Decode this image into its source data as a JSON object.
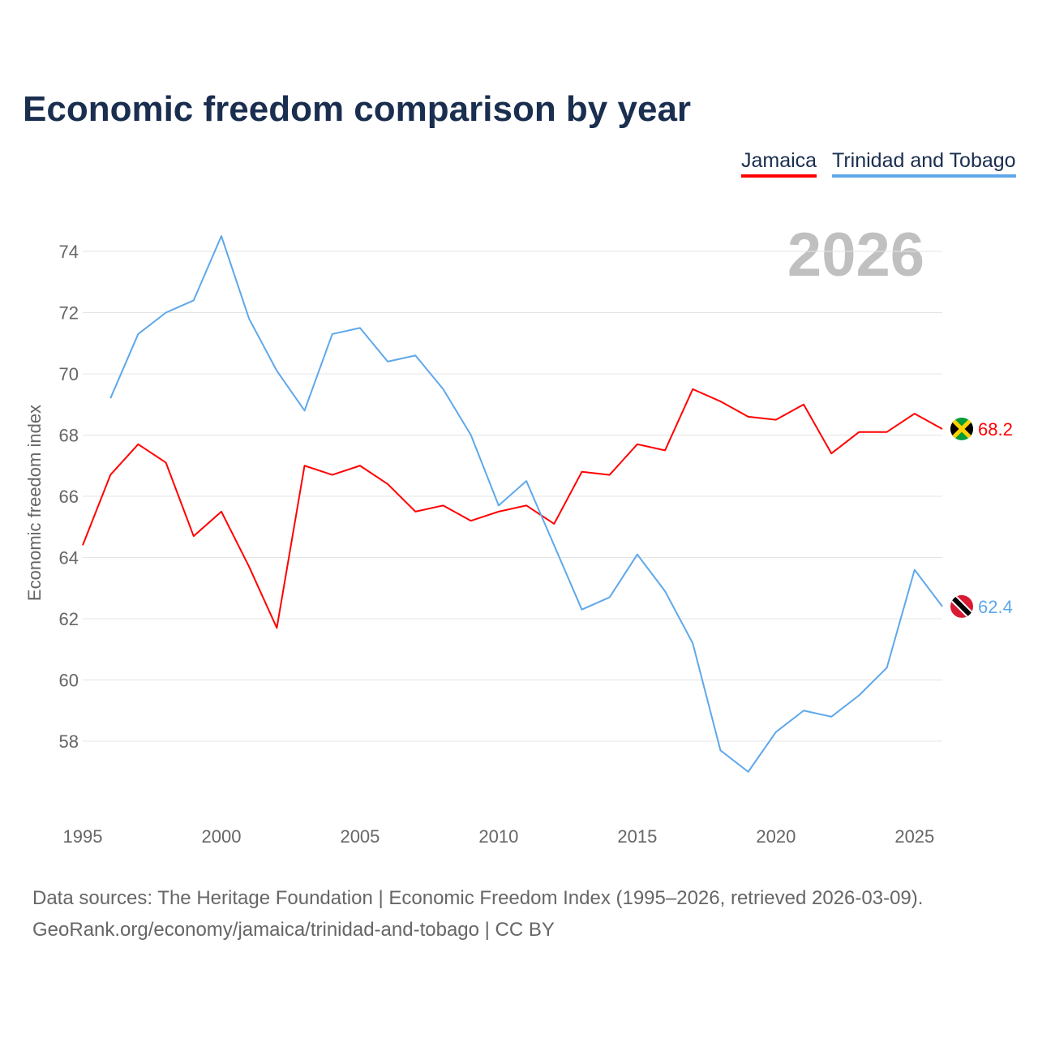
{
  "title": "Economic freedom comparison by year",
  "footer": {
    "line1": "Data sources: The Heritage Foundation | Economic Freedom Index (1995–2026, retrieved 2026-03-09).",
    "line2": "GeoRank.org/economy/jamaica/trinidad-and-tobago | CC BY"
  },
  "chart_data": {
    "type": "line",
    "title": "Economic freedom comparison by year",
    "xlabel": "",
    "ylabel": "Economic freedom index",
    "year_watermark": "2026",
    "xlim": [
      1995,
      2026
    ],
    "ylim": [
      56.5,
      75
    ],
    "xticks": [
      "1995",
      "2000",
      "2005",
      "2010",
      "2015",
      "2020",
      "2025"
    ],
    "yticks": [
      "58",
      "60",
      "62",
      "64",
      "66",
      "68",
      "70",
      "72",
      "74"
    ],
    "grid": true,
    "legend_position": "top-right",
    "series": [
      {
        "name": "Jamaica",
        "color": "#ff0000",
        "end_label": "68.2",
        "flag": "jamaica-flag-icon",
        "x": [
          1995,
          1996,
          1997,
          1998,
          1999,
          2000,
          2001,
          2002,
          2003,
          2004,
          2005,
          2006,
          2007,
          2008,
          2009,
          2010,
          2011,
          2012,
          2013,
          2014,
          2015,
          2016,
          2017,
          2018,
          2019,
          2020,
          2021,
          2022,
          2023,
          2024,
          2025,
          2026
        ],
        "values": [
          64.4,
          66.7,
          67.7,
          67.1,
          64.7,
          65.5,
          63.7,
          61.7,
          67.0,
          66.7,
          67.0,
          66.4,
          65.5,
          65.7,
          65.2,
          65.5,
          65.7,
          65.1,
          66.8,
          66.7,
          67.7,
          67.5,
          69.5,
          69.1,
          68.6,
          68.5,
          69.0,
          67.4,
          68.1,
          68.1,
          68.7,
          68.2
        ]
      },
      {
        "name": "Trinidad and Tobago",
        "color": "#5ea8ea",
        "end_label": "62.4",
        "flag": "trinidad-flag-icon",
        "x": [
          1996,
          1997,
          1998,
          1999,
          2000,
          2001,
          2002,
          2003,
          2004,
          2005,
          2006,
          2007,
          2008,
          2009,
          2010,
          2011,
          2012,
          2013,
          2014,
          2015,
          2016,
          2017,
          2018,
          2019,
          2020,
          2021,
          2022,
          2023,
          2024,
          2025,
          2026
        ],
        "values": [
          69.2,
          71.3,
          72.0,
          72.4,
          74.5,
          71.8,
          70.1,
          68.8,
          71.3,
          71.5,
          70.4,
          70.6,
          69.5,
          68.0,
          65.7,
          66.5,
          64.4,
          62.3,
          62.7,
          64.1,
          62.9,
          61.2,
          57.7,
          57.0,
          58.3,
          59.0,
          58.8,
          59.5,
          60.4,
          63.6,
          62.4
        ]
      }
    ]
  }
}
